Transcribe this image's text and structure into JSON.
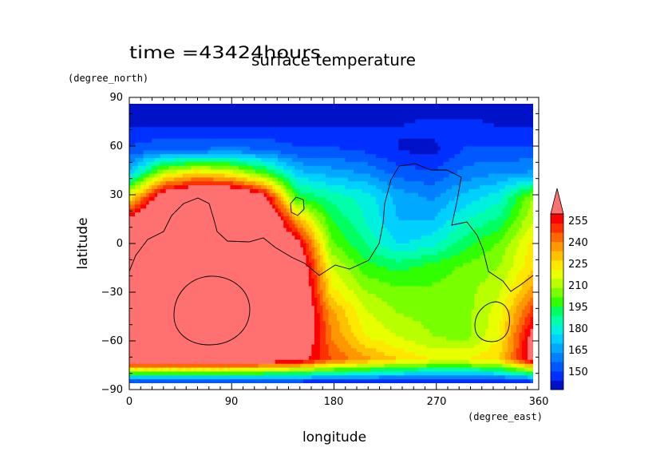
{
  "chart_data": {
    "type": "heatmap",
    "title": "surface temperature",
    "subtitle": "time =43424hours",
    "xlabel": "longitude",
    "ylabel": "latitude",
    "x_units": "(degree_east)",
    "y_units": "(degree_north)",
    "xlim": [
      0,
      360
    ],
    "ylim": [
      -90,
      90
    ],
    "x_ticks": [
      "0",
      "90",
      "180",
      "270",
      "360"
    ],
    "y_ticks": [
      "90",
      "60",
      "30",
      "0",
      "−30",
      "−60",
      "−90"
    ],
    "colorbar": {
      "labels": [
        "255",
        "240",
        "225",
        "210",
        "195",
        "180",
        "165",
        "150"
      ],
      "levels": [
        145,
        150,
        155,
        160,
        165,
        170,
        175,
        180,
        185,
        190,
        195,
        200,
        205,
        210,
        215,
        220,
        225,
        230,
        235,
        240,
        245,
        250,
        255,
        260
      ],
      "colors": [
        "#0012c8",
        "#0030ff",
        "#0058ff",
        "#0080ff",
        "#00a8ff",
        "#00d0ff",
        "#00f0e0",
        "#00ffa8",
        "#00ff60",
        "#30ff00",
        "#78ff00",
        "#b8ff00",
        "#e8ff00",
        "#ffe800",
        "#ffc000",
        "#ff9800",
        "#ff6800",
        "#ff3000",
        "#ff0000",
        "#ff7070"
      ],
      "extend": "max"
    },
    "grid": false,
    "lon": [
      0,
      30,
      60,
      90,
      120,
      150,
      180,
      210,
      240,
      270,
      300,
      330,
      360
    ],
    "lat": [
      90,
      75,
      60,
      45,
      30,
      15,
      0,
      -15,
      -30,
      -45,
      -60,
      -75,
      -90
    ],
    "values": [
      [
        147,
        147,
        147,
        147,
        147,
        147,
        147,
        147,
        147,
        147,
        147,
        147,
        147
      ],
      [
        150,
        150,
        150,
        150,
        150,
        150,
        150,
        150,
        150,
        152,
        152,
        150,
        150
      ],
      [
        156,
        160,
        160,
        162,
        160,
        156,
        156,
        154,
        150,
        148,
        156,
        156,
        156
      ],
      [
        172,
        205,
        215,
        210,
        195,
        172,
        168,
        165,
        158,
        156,
        162,
        165,
        166
      ],
      [
        210,
        250,
        262,
        262,
        245,
        190,
        183,
        178,
        168,
        164,
        172,
        178,
        200
      ],
      [
        245,
        262,
        262,
        262,
        262,
        220,
        190,
        180,
        170,
        170,
        180,
        186,
        205
      ],
      [
        260,
        262,
        262,
        262,
        262,
        245,
        196,
        185,
        174,
        178,
        188,
        196,
        212
      ],
      [
        262,
        262,
        262,
        262,
        262,
        255,
        206,
        192,
        188,
        192,
        196,
        200,
        214
      ],
      [
        262,
        262,
        262,
        262,
        262,
        258,
        212,
        200,
        196,
        196,
        198,
        204,
        222
      ],
      [
        262,
        262,
        262,
        262,
        262,
        258,
        222,
        206,
        200,
        198,
        198,
        208,
        234
      ],
      [
        262,
        262,
        262,
        262,
        262,
        255,
        225,
        210,
        205,
        200,
        198,
        210,
        245
      ],
      [
        255,
        255,
        255,
        255,
        250,
        245,
        230,
        222,
        215,
        210,
        210,
        215,
        245
      ],
      [
        147,
        147,
        147,
        147,
        147,
        147,
        147,
        147,
        147,
        147,
        147,
        147,
        147
      ]
    ]
  }
}
